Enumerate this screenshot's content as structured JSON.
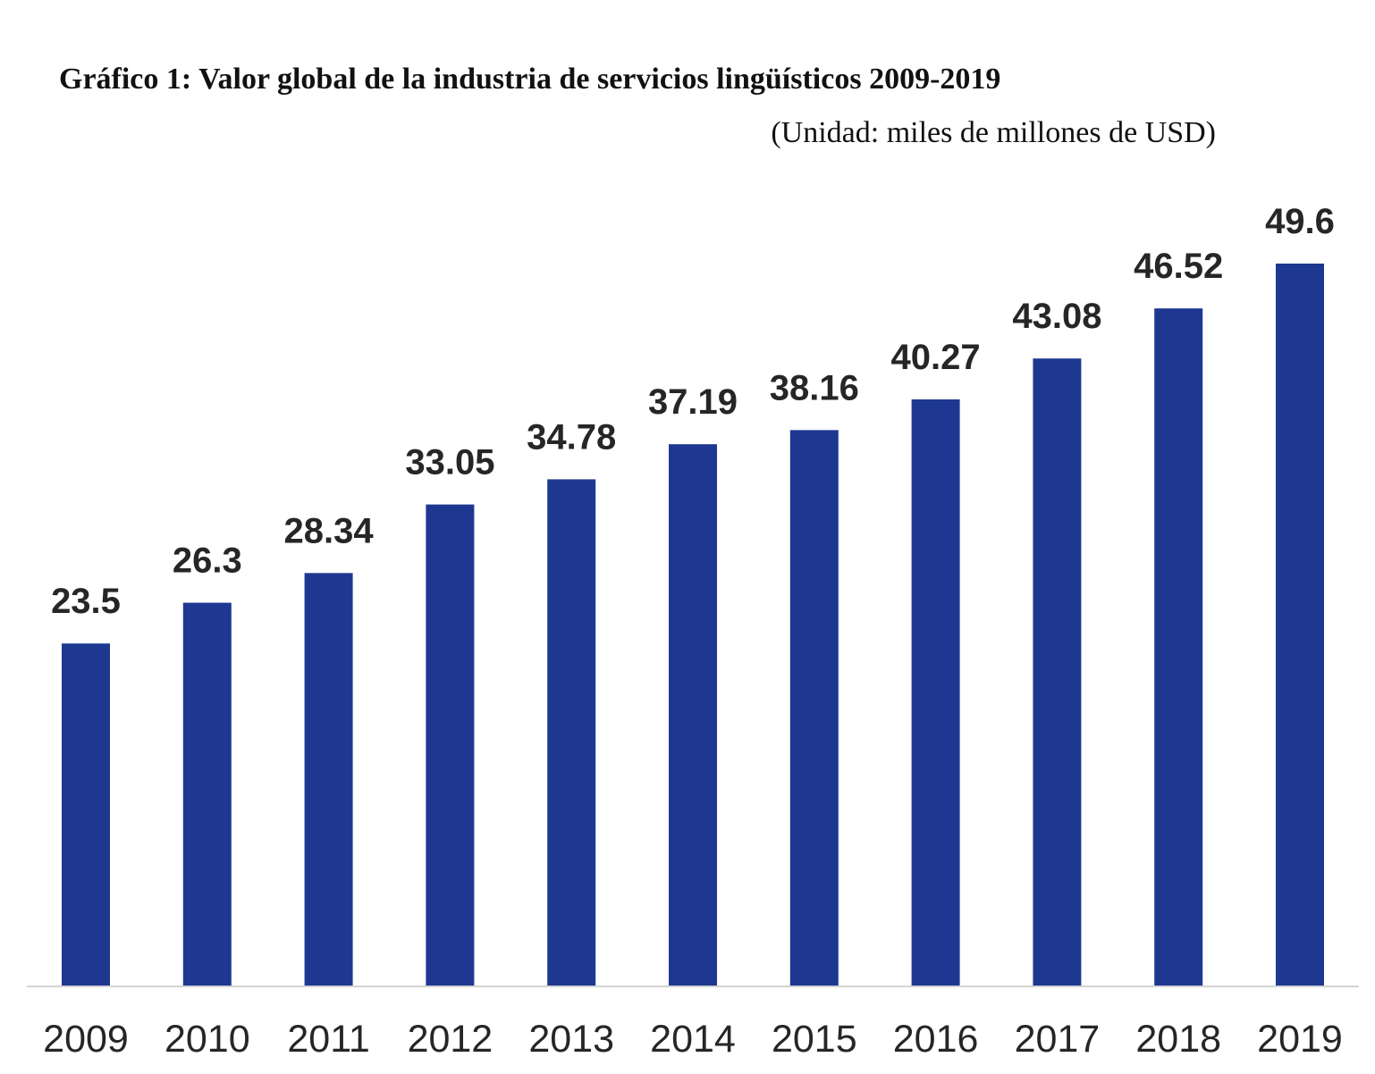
{
  "title": "Gráfico 1: Valor global de la industria de servicios lingüísticos 2009-2019",
  "unit_note": "(Unidad: miles de millones de USD)",
  "colors": {
    "bar": "#1e3891",
    "axis": "#d4d4d4",
    "text": "#262626"
  },
  "chart_data": {
    "type": "bar",
    "title": "Gráfico 1: Valor global de la industria de servicios lingüísticos 2009-2019",
    "subtitle": "(Unidad: miles de millones de USD)",
    "categories": [
      "2009",
      "2010",
      "2011",
      "2012",
      "2013",
      "2014",
      "2015",
      "2016",
      "2017",
      "2018",
      "2019"
    ],
    "value_labels": [
      "23.5",
      "26.3",
      "28.34",
      "33.05",
      "34.78",
      "37.19",
      "38.16",
      "40.27",
      "43.08",
      "46.52",
      "49.6"
    ],
    "values": [
      23.5,
      26.3,
      28.34,
      33.05,
      34.78,
      37.19,
      38.16,
      40.27,
      43.08,
      46.52,
      49.6
    ],
    "xlabel": "",
    "ylabel": "",
    "ylim": [
      0,
      49.6
    ],
    "grid": false,
    "legend": "none"
  }
}
